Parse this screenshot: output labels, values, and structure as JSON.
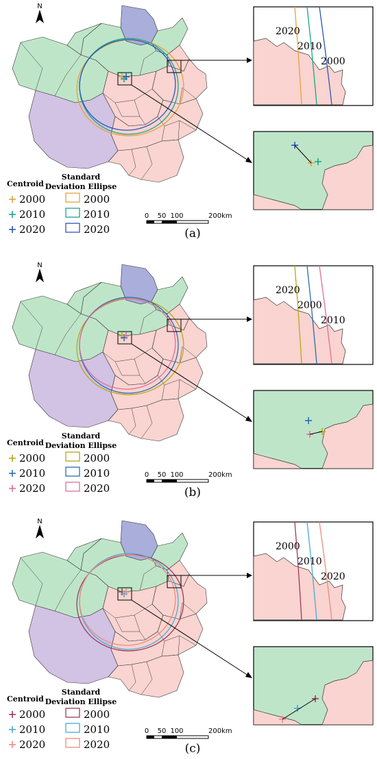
{
  "panels": [
    {
      "label": "(a)",
      "centroid_title": "Centroid",
      "ellipse_title_1": "Standard",
      "ellipse_title_2": "Deviation Ellipse",
      "years": [
        {
          "year": "2000",
          "color": "#e6a23c"
        },
        {
          "year": "2010",
          "color": "#1aa58a"
        },
        {
          "year": "2020",
          "color": "#2c56b8"
        }
      ],
      "zoom_top_labels": [
        "2020",
        "2010",
        "2000"
      ]
    },
    {
      "label": "(b)",
      "centroid_title": "Centroid",
      "ellipse_title_1": "Standard",
      "ellipse_title_2": "Deviation Ellipse",
      "years": [
        {
          "year": "2000",
          "color": "#b5a817"
        },
        {
          "year": "2010",
          "color": "#2a6cb0"
        },
        {
          "year": "2020",
          "color": "#e06d9d"
        }
      ],
      "zoom_top_labels": [
        "2020",
        "2000",
        "2010"
      ]
    },
    {
      "label": "(c)",
      "centroid_title": "Centroid",
      "ellipse_title_1": "Standard",
      "ellipse_title_2": "Deviation Ellipse",
      "years": [
        {
          "year": "2000",
          "color": "#a0395b"
        },
        {
          "year": "2010",
          "color": "#4aa9d6"
        },
        {
          "year": "2020",
          "color": "#f08a7a"
        }
      ],
      "zoom_top_labels": [
        "2000",
        "2010",
        "2020"
      ]
    }
  ],
  "scale": {
    "ticks": [
      "0",
      "50",
      "100",
      "200km"
    ]
  },
  "north_label": "N",
  "colors": {
    "green": "#bfe5c9",
    "pink": "#f9d4d0",
    "blue": "#a9aedb",
    "purple": "#d2c2e3"
  }
}
